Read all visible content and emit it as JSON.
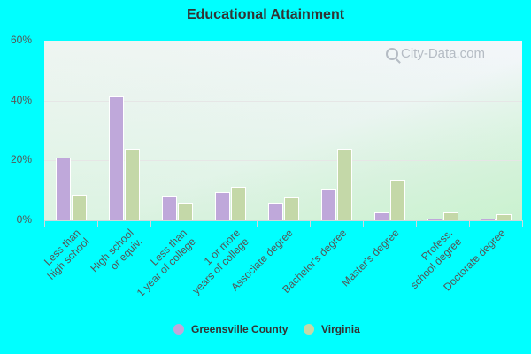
{
  "chart_data": {
    "type": "bar",
    "title": "Educational Attainment",
    "xlabel": "",
    "ylabel": "",
    "ylim": [
      0,
      60
    ],
    "yticks": [
      "0%",
      "20%",
      "40%",
      "60%"
    ],
    "grid": true,
    "legend_position": "bottom",
    "categories": [
      "Less than high school",
      "High school or equiv.",
      "Less than 1 year of college",
      "1 or more years of college",
      "Associate degree",
      "Bachelor's degree",
      "Master's degree",
      "Profess. school degree",
      "Doctorate degree"
    ],
    "category_lines": [
      [
        "Less than",
        "high school"
      ],
      [
        "High school",
        "or equiv."
      ],
      [
        "Less than",
        "1 year of college"
      ],
      [
        "1 or more",
        "years of college"
      ],
      [
        "Associate degree"
      ],
      [
        "Bachelor's degree"
      ],
      [
        "Master's degree"
      ],
      [
        "Profess.",
        "school degree"
      ],
      [
        "Doctorate degree"
      ]
    ],
    "series": [
      {
        "name": "Greensville County",
        "color": "#bfa8da",
        "values": [
          21.0,
          41.5,
          8.0,
          9.5,
          5.9,
          10.4,
          2.7,
          0.6,
          0.6
        ]
      },
      {
        "name": "Virginia",
        "color": "#c4d8a8",
        "values": [
          8.6,
          24.0,
          5.9,
          11.3,
          7.7,
          24.0,
          13.6,
          2.7,
          2.1
        ]
      }
    ]
  },
  "watermark": "City-Data.com"
}
